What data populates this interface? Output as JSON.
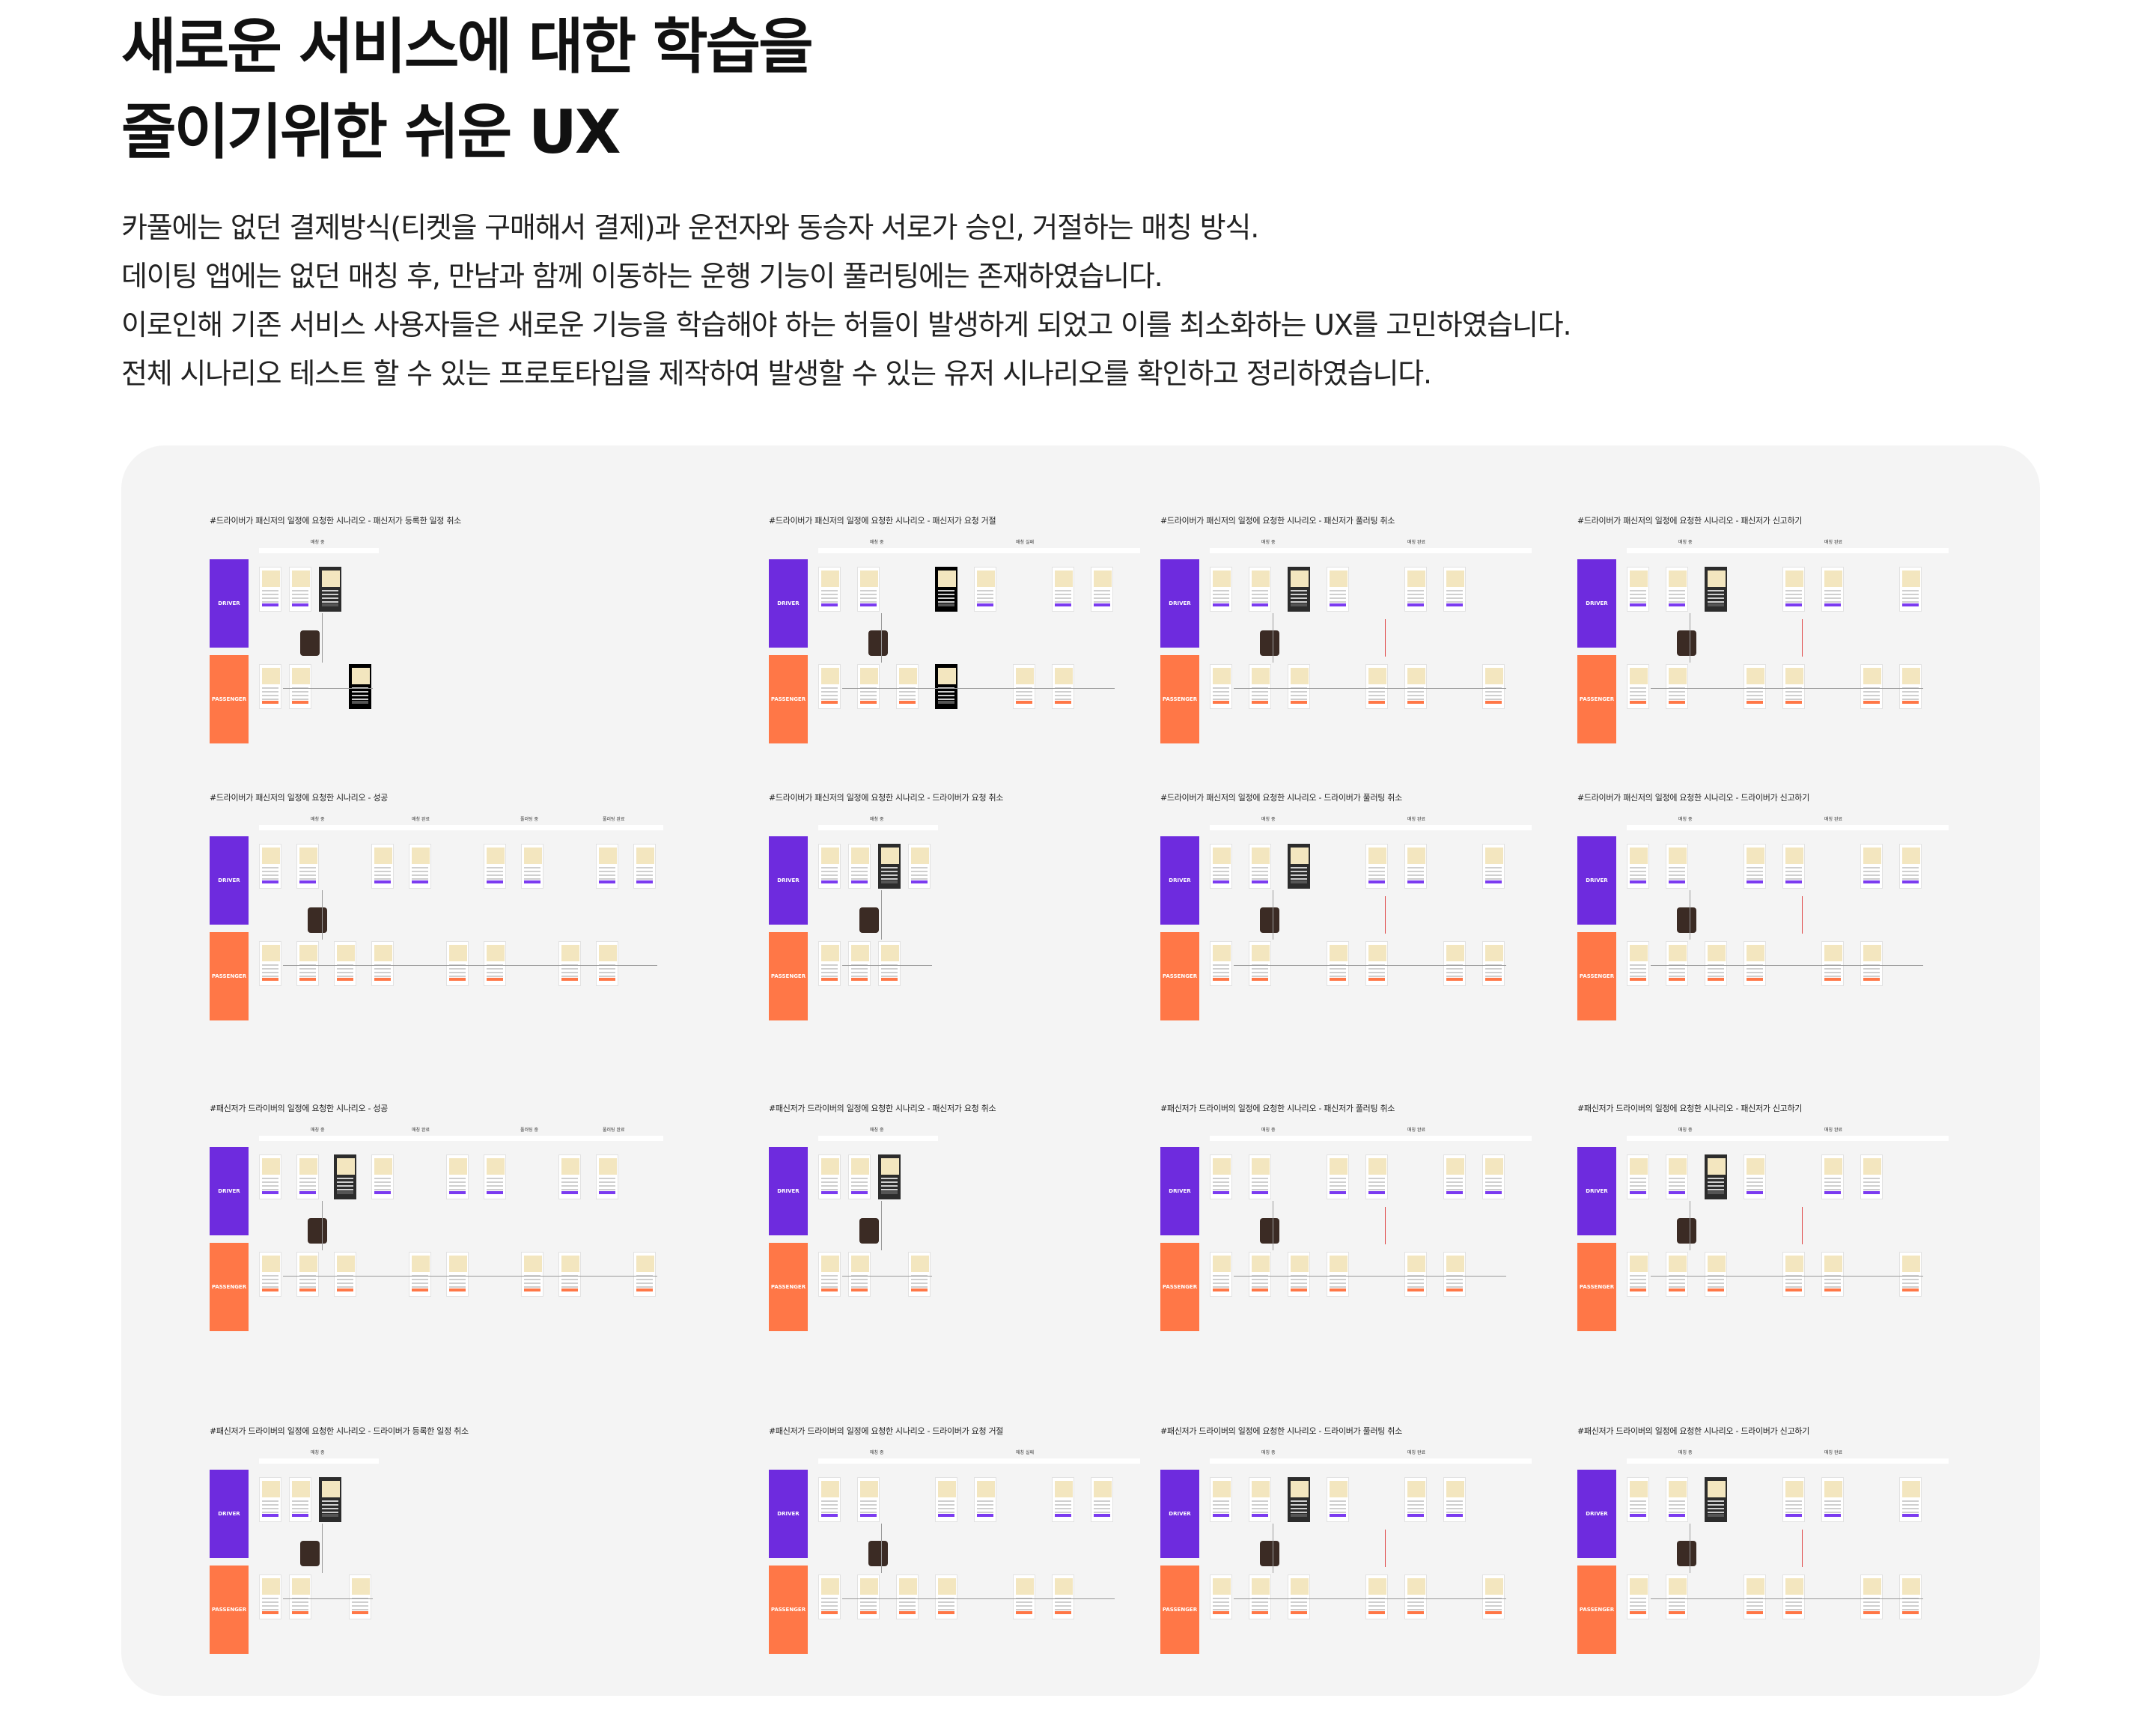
{
  "title": {
    "line1": "새로운 서비스에 대한 학습을",
    "line2": "줄이기위한 쉬운 UX"
  },
  "description": [
    "카풀에는 없던 결제방식(티켓을 구매해서 결제)과 운전자와 동승자 서로가 승인, 거절하는 매칭 방식.",
    "데이팅 앱에는 없던 매칭 후, 만남과 함께 이동하는 운행 기능이 풀러팅에는 존재하였습니다.",
    "이로인해 기존 서비스 사용자들은 새로운 기능을 학습해야 하는 허들이 발생하게 되었고 이를 최소화하는 UX를 고민하였습니다.",
    "전체 시나리오 테스트 할 수 있는 프로토타입을 제작하여 발생할 수 있는 유저 시나리오를 확인하고 정리하였습니다."
  ],
  "lanes": {
    "driver": "DRIVER",
    "passenger": "PASSENGER"
  },
  "stage_labels": {
    "matching": "매칭 중",
    "match_done": "매칭 완료",
    "match_fail": "매칭 실패",
    "pulling": "풀러팅 중",
    "pulling_done": "풀러팅 완료"
  },
  "colors": {
    "driver": "#6e2bde",
    "passenger": "#ff7747",
    "board": "#f4f4f4"
  },
  "scenarios": [
    {
      "title": "#드라이버가 패신저의 일정에 요청한 시나리오 - 패신저가 등록한 일정 취소"
    },
    {
      "title": "#드라이버가 패신저의 일정에 요청한 시나리오 - 패신저가 요청 거절"
    },
    {
      "title": "#드라이버가 패신저의 일정에 요청한 시나리오  - 패신저가 풀러팅 취소"
    },
    {
      "title": "#드라이버가 패신저의 일정에 요청한 시나리오  - 패신저가 신고하기"
    },
    {
      "title": "#드라이버가 패신저의 일정에 요청한 시나리오 - 성공"
    },
    {
      "title": "#드라이버가 패신저의 일정에 요청한 시나리오  - 드라이버가 요청 취소"
    },
    {
      "title": "#드라이버가 패신저의 일정에 요청한 시나리오  - 드라이버가 풀러팅 취소"
    },
    {
      "title": "#드라이버가 패신저의 일정에 요청한 시나리오  - 드라이버가 신고하기"
    },
    {
      "title": "#패신저가 드라이버의 일정에 요청한 시나리오 - 성공"
    },
    {
      "title": "#패신저가 드라이버의 일정에 요청한 시나리오 - 패신저가 요청 취소"
    },
    {
      "title": "#패신저가 드라이버의 일정에 요청한 시나리오 - 패신저가 풀러팅 취소"
    },
    {
      "title": "#패신저가 드라이버의 일정에 요청한 시나리오 - 패신저가 신고하기"
    },
    {
      "title": "#패신저가 드라이버의 일정에 요청한 시나리오 - 드라이버가 등록한 일정 취소"
    },
    {
      "title": "#패신저가 드라이버의 일정에 요청한 시나리오 - 드라이버가 요청 거절"
    },
    {
      "title": "#패신저가 드라이버의 일정에 요청한 시나리오 - 드라이버가 풀러팅 취소"
    },
    {
      "title": "#패신저가 드라이버의 일정에 요청한 시나리오 - 드라이버가 신고하기"
    }
  ]
}
